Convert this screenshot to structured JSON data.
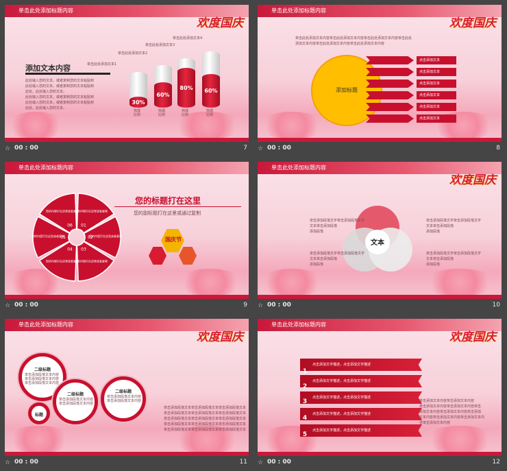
{
  "header_placeholder": "单击此处添加标题内容",
  "logo_text": "欢度国庆",
  "time": "00 : 00",
  "slides": [
    {
      "num": "7"
    },
    {
      "num": "8"
    },
    {
      "num": "9"
    },
    {
      "num": "10"
    },
    {
      "num": "11"
    },
    {
      "num": "12"
    }
  ],
  "s7": {
    "title": "添加文本内容",
    "body": [
      "此处输入您的文本，或者复制您的文本粘贴到",
      "此处输入您的文本，或者复制您的文本粘贴到",
      "此处。此处输入您的文本。",
      "此处输入您的文本，或者复制您的文本粘贴到",
      "此处输入您的文本，或者复制您的文本粘贴到",
      "此处。此处输入您的文本。"
    ],
    "legend": [
      "单击此处添加文本1",
      "单击此处添加文本2",
      "单击此处添加文本3",
      "单击此处添加文本4"
    ],
    "bars": [
      {
        "pct": "30%",
        "level": 0.3,
        "label": "完成比例"
      },
      {
        "pct": "60%",
        "level": 0.6,
        "label": "完成比例"
      },
      {
        "pct": "80%",
        "level": 0.8,
        "label": "完成比例"
      },
      {
        "pct": "60%",
        "level": 0.6,
        "label": "完成比例"
      }
    ]
  },
  "s8": {
    "intro": [
      "单击此处添加文本内容单击此处添加文本内容单击此处添加文本内容单击此处",
      "添加文本内容单击此处添加文本内容单击此处添加文本内容"
    ],
    "circle": "添加标题",
    "items": [
      "点击添加文本",
      "点击添加文本",
      "点击添加文本",
      "点击添加文本",
      "点击添加文本",
      "点击添加文本"
    ]
  },
  "s9": {
    "title": "您的标题打在这里",
    "subtitle": "您的副标题打在这里或通过复制",
    "segments": [
      {
        "n": "01",
        "t": "您的内容打在这里或者复制"
      },
      {
        "n": "02",
        "t": "您的内容打在这里或者复制"
      },
      {
        "n": "03",
        "t": "您的内容打在这里或者复制"
      },
      {
        "n": "04",
        "t": "您的内容打在这里或者复制"
      },
      {
        "n": "05",
        "t": "您的内容打在这里或者复制"
      },
      {
        "n": "06",
        "t": "您的内容打在这里或者复制"
      }
    ],
    "badge": "国庆节"
  },
  "s10": {
    "center": "文本",
    "left": [
      "单击添加段落文字单击添加段落文字",
      "文本单击添加段落",
      "添加段落"
    ],
    "right": [
      "单击添加段落文字单击添加段落文字",
      "文本单击添加段落",
      "添加段落"
    ]
  },
  "s11": {
    "big": {
      "title": "二级标题",
      "lines": [
        "单击添加段落文本内容",
        "单击添加段落文本内容",
        "单击添加段落文本内容"
      ]
    },
    "mid": {
      "title": "二级标题",
      "lines": [
        "单击添加段落文本内容",
        "单击添加段落文本内容"
      ]
    },
    "small": {
      "title": "标题"
    },
    "right": {
      "title": "二级标题",
      "lines": [
        "单击添加段落文本内容",
        "单击添加段落文本内容"
      ]
    },
    "body": [
      "单击添加段落文本单击添加段落文本单击添加段落文本",
      "单击添加段落文本单击添加段落文本单击添加段落文本",
      "单击添加段落文本单击添加段落文本单击添加段落文本",
      "单击添加段落文本单击添加段落文本单击添加段落文本",
      "单击添加段落文本单击添加段落文本单击添加段落文本"
    ]
  },
  "s12": {
    "rows": [
      {
        "n": "1",
        "t": "点击添加文字描述，点击添加文字描述"
      },
      {
        "n": "2",
        "t": "点击添加文字描述，点击添加文字描述"
      },
      {
        "n": "3",
        "t": "点击添加文字描述，点击添加文字描述"
      },
      {
        "n": "4",
        "t": "点击添加文字描述，点击添加文字描述"
      },
      {
        "n": "5",
        "t": "点击添加文字描述，点击添加文字描述"
      }
    ],
    "body": [
      "单击添加文本内容单击添加文本内容",
      "单击添加文本内容单击添加文本内容单击",
      "添加文本内容单击添加文本内容单击添加",
      "文本内容单击添加文本内容单击添加文本内",
      "容单击添加文本内容"
    ]
  }
}
